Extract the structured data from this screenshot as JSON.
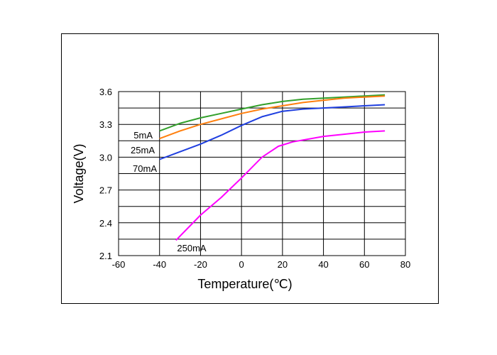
{
  "chart_data": {
    "type": "line",
    "title": "",
    "xlabel": "Temperature(℃)",
    "ylabel": "Voltage(V)",
    "xlim": [
      -60,
      80
    ],
    "ylim": [
      2.1,
      3.6
    ],
    "xticks": [
      "-60",
      "-40",
      "-20",
      "0",
      "20",
      "40",
      "60",
      "80"
    ],
    "yticks": [
      "3.6",
      "3.3",
      "3.0",
      "2.7",
      "2.4",
      "2.1"
    ],
    "grid": true,
    "series": [
      {
        "name": "5mA",
        "color": "#33a02c",
        "x": [
          -40,
          -30,
          -20,
          -10,
          0,
          10,
          20,
          30,
          40,
          50,
          60,
          70
        ],
        "y": [
          3.24,
          3.31,
          3.36,
          3.4,
          3.44,
          3.48,
          3.51,
          3.53,
          3.54,
          3.55,
          3.56,
          3.57
        ]
      },
      {
        "name": "25mA",
        "color": "#ff7f0e",
        "x": [
          -40,
          -30,
          -20,
          -10,
          0,
          10,
          20,
          30,
          40,
          50,
          60,
          70
        ],
        "y": [
          3.17,
          3.24,
          3.3,
          3.35,
          3.4,
          3.44,
          3.47,
          3.5,
          3.52,
          3.54,
          3.55,
          3.56
        ]
      },
      {
        "name": "70mA",
        "color": "#1f3fe0",
        "x": [
          -40,
          -30,
          -20,
          -10,
          0,
          10,
          20,
          30,
          40,
          50,
          60,
          70
        ],
        "y": [
          2.98,
          3.05,
          3.12,
          3.2,
          3.29,
          3.37,
          3.42,
          3.44,
          3.45,
          3.46,
          3.47,
          3.48
        ]
      },
      {
        "name": "250mA",
        "color": "#ff00ff",
        "x": [
          -32,
          -20,
          -10,
          0,
          10,
          18,
          25,
          40,
          50,
          60,
          70
        ],
        "y": [
          2.24,
          2.47,
          2.63,
          2.81,
          3.0,
          3.1,
          3.14,
          3.19,
          3.21,
          3.23,
          3.24
        ]
      }
    ]
  }
}
